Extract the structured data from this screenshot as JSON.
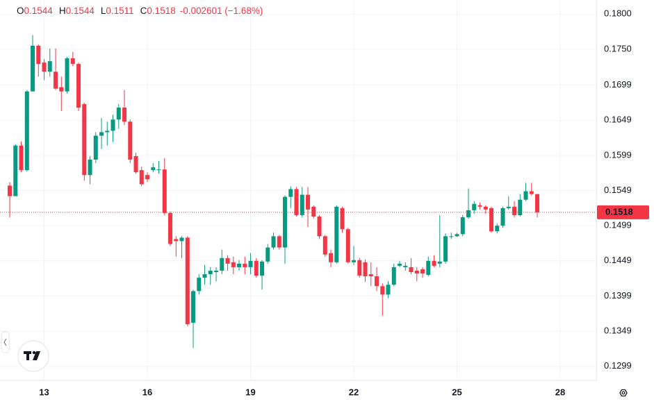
{
  "chart_data": {
    "type": "candlestick",
    "up_color": "#089981",
    "down_color": "#f23645",
    "ohlc_labels": [
      "O",
      "H",
      "L",
      "C"
    ],
    "change_label": "-0.002601 (−1.68%)",
    "xlim": [
      -1.7,
      102.3
    ],
    "xticks": [
      {
        "value": 6,
        "label": "13"
      },
      {
        "value": 24,
        "label": "16"
      },
      {
        "value": 42,
        "label": "19"
      },
      {
        "value": 60,
        "label": "22"
      },
      {
        "value": 78,
        "label": "25"
      },
      {
        "value": 96,
        "label": "28"
      }
    ],
    "ylim": [
      0.1279,
      0.182
    ],
    "yticks": [
      {
        "value": 0.18,
        "label": "0.1800"
      },
      {
        "value": 0.175,
        "label": "0.1750"
      },
      0.1699,
      0.1649,
      0.1599,
      0.1549,
      0.1499,
      0.1449,
      0.1399,
      0.1349,
      0.1299
    ],
    "grid": true,
    "open": [
      0.1556,
      0.1541,
      0.1613,
      0.1578,
      0.169,
      0.1755,
      0.1731,
      0.1718,
      0.1718,
      0.1696,
      0.169,
      0.1737,
      0.1729,
      0.1672,
      0.1571,
      0.1593,
      0.1627,
      0.1632,
      0.1634,
      0.165,
      0.1667,
      0.1647,
      0.1598,
      0.1578,
      0.1571,
      0.1578,
      0.1578,
      0.1579,
      0.1517,
      0.148,
      0.1477,
      0.1482,
      0.1361,
      0.1406,
      0.1425,
      0.143,
      0.1433,
      0.1435,
      0.1453,
      0.1447,
      0.144,
      0.1445,
      0.144,
      0.1449,
      0.1428,
      0.1448,
      0.1468,
      0.1484,
      0.1468,
      0.154,
      0.1551,
      0.1514,
      0.1543,
      0.1526,
      0.1512,
      0.1484,
      0.146,
      0.1447,
      0.1524,
      0.1494,
      0.1447,
      0.145,
      0.1447,
      0.143,
      0.1427,
      0.1413,
      0.1401,
      0.1415,
      0.1442,
      0.144,
      0.144,
      0.1435,
      0.1437,
      0.1429,
      0.1449,
      0.1445,
      0.1448,
      0.1483,
      0.1484,
      0.1487,
      0.1511,
      0.1521,
      0.1528,
      0.1526,
      0.1524,
      0.1491,
      0.1499,
      0.1524,
      0.1526,
      0.1514,
      0.1536,
      0.1548,
      0.1544
    ],
    "high": [
      0.1561,
      0.1615,
      0.1619,
      0.1692,
      0.177,
      0.1757,
      0.1736,
      0.1751,
      0.1751,
      0.1711,
      0.1739,
      0.1746,
      0.1731,
      0.1674,
      0.1598,
      0.1632,
      0.1652,
      0.1647,
      0.1657,
      0.1672,
      0.1692,
      0.165,
      0.1603,
      0.1583,
      0.1575,
      0.1588,
      0.1591,
      0.1595,
      0.1519,
      0.1484,
      0.1484,
      0.1484,
      0.1408,
      0.143,
      0.1443,
      0.144,
      0.144,
      0.1465,
      0.1457,
      0.1455,
      0.145,
      0.1455,
      0.146,
      0.1453,
      0.145,
      0.1473,
      0.1489,
      0.1486,
      0.1542,
      0.1555,
      0.1554,
      0.1554,
      0.1554,
      0.1528,
      0.1514,
      0.1486,
      0.1465,
      0.1528,
      0.1526,
      0.1496,
      0.147,
      0.1453,
      0.1451,
      0.1447,
      0.144,
      0.1417,
      0.142,
      0.1445,
      0.1449,
      0.1447,
      0.1453,
      0.144,
      0.144,
      0.1455,
      0.1457,
      0.1514,
      0.1488,
      0.1489,
      0.1489,
      0.1514,
      0.1552,
      0.1534,
      0.1532,
      0.1528,
      0.1526,
      0.1502,
      0.1526,
      0.1541,
      0.1534,
      0.1544,
      0.156,
      0.156,
      0.1544
    ],
    "low": [
      0.1511,
      0.1541,
      0.1575,
      0.1576,
      0.169,
      0.1711,
      0.1706,
      0.1711,
      0.1692,
      0.1662,
      0.1687,
      0.1726,
      0.1662,
      0.1563,
      0.1558,
      0.1588,
      0.1608,
      0.1613,
      0.1618,
      0.1637,
      0.1642,
      0.1588,
      0.1573,
      0.1555,
      0.1561,
      0.1575,
      0.1573,
      0.1514,
      0.147,
      0.1455,
      0.1453,
      0.1356,
      0.1325,
      0.1401,
      0.1415,
      0.1415,
      0.142,
      0.143,
      0.1435,
      0.143,
      0.1435,
      0.143,
      0.143,
      0.1425,
      0.1408,
      0.1445,
      0.1465,
      0.1465,
      0.1445,
      0.1524,
      0.1512,
      0.1511,
      0.1497,
      0.1509,
      0.148,
      0.1455,
      0.144,
      0.1445,
      0.1489,
      0.1445,
      0.1443,
      0.1425,
      0.1419,
      0.1413,
      0.1406,
      0.1371,
      0.1396,
      0.1413,
      0.144,
      0.1435,
      0.143,
      0.142,
      0.1425,
      0.1427,
      0.144,
      0.144,
      0.1445,
      0.148,
      0.1483,
      0.1484,
      0.1509,
      0.1516,
      0.1522,
      0.1516,
      0.1489,
      0.1488,
      0.1496,
      0.1522,
      0.1511,
      0.1512,
      0.1534,
      0.1542,
      0.1511
    ],
    "close": [
      0.1541,
      0.1613,
      0.1578,
      0.169,
      0.1755,
      0.1729,
      0.1718,
      0.1733,
      0.1694,
      0.169,
      0.1737,
      0.1729,
      0.1667,
      0.1571,
      0.1593,
      0.1627,
      0.1632,
      0.1634,
      0.165,
      0.1667,
      0.1647,
      0.1593,
      0.1575,
      0.1558,
      0.1565,
      0.1582,
      0.1579,
      0.1517,
      0.1473,
      0.1477,
      0.1482,
      0.1359,
      0.1406,
      0.1425,
      0.143,
      0.1435,
      0.1435,
      0.1453,
      0.1445,
      0.144,
      0.1445,
      0.144,
      0.1449,
      0.1428,
      0.1448,
      0.1468,
      0.1484,
      0.1468,
      0.154,
      0.1551,
      0.1514,
      0.1543,
      0.1522,
      0.1512,
      0.1484,
      0.1458,
      0.1447,
      0.1526,
      0.1494,
      0.1447,
      0.145,
      0.1428,
      0.1427,
      0.1427,
      0.1413,
      0.1401,
      0.1415,
      0.144,
      0.1445,
      0.1442,
      0.1433,
      0.1431,
      0.1431,
      0.1449,
      0.1442,
      0.1448,
      0.1484,
      0.1484,
      0.1487,
      0.1511,
      0.1521,
      0.153,
      0.1526,
      0.1522,
      0.1491,
      0.1499,
      0.1524,
      0.1526,
      0.1514,
      0.1536,
      0.1548,
      0.1544,
      0.1518
    ]
  }
}
